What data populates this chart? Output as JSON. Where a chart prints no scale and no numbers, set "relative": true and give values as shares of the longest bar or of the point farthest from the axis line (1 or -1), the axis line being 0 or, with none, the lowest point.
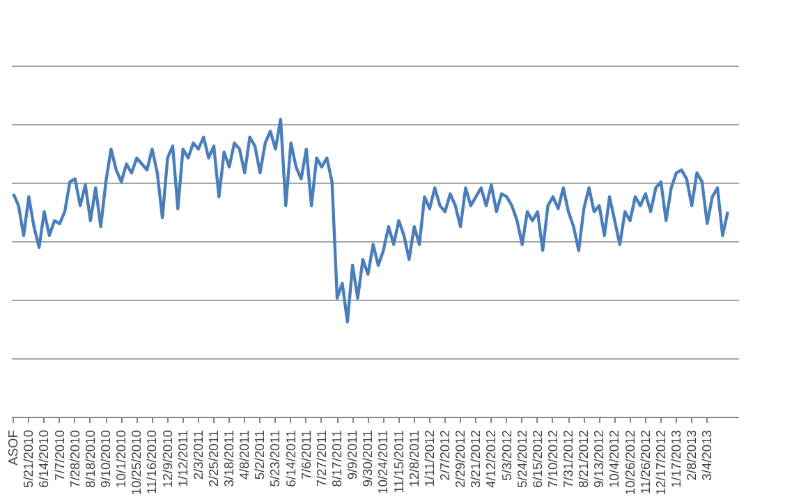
{
  "chart_data": {
    "type": "line",
    "relative": true,
    "grid": "y",
    "line_style": "solid",
    "marker": "none",
    "categories": [
      "ASOF",
      null,
      null,
      "5/21/2010",
      null,
      null,
      "6/14/2010",
      null,
      null,
      "7/7/2010",
      null,
      null,
      "7/28/2010",
      null,
      null,
      "8/18/2010",
      null,
      null,
      "9/10/2010",
      null,
      null,
      "10/1/2010",
      null,
      null,
      "10/25/2010",
      null,
      null,
      "11/16/2010",
      null,
      null,
      "12/9/2010",
      null,
      null,
      "1/12/2011",
      null,
      null,
      "2/3/2011",
      null,
      null,
      "2/25/2011",
      null,
      null,
      "3/18/2011",
      null,
      null,
      "4/8/2011",
      null,
      null,
      "5/2/2011",
      null,
      null,
      "5/23/2011",
      null,
      null,
      "6/14/2011",
      null,
      null,
      "7/6/2011",
      null,
      null,
      "7/27/2011",
      null,
      null,
      "8/17/2011",
      null,
      null,
      "9/9/2011",
      null,
      null,
      "9/30/2011",
      null,
      null,
      "10/24/2011",
      null,
      null,
      "11/15/2011",
      null,
      null,
      "12/8/2011",
      null,
      null,
      "1/11/2012",
      null,
      null,
      "2/7/2012",
      null,
      null,
      "2/29/2012",
      null,
      null,
      "3/21/2012",
      null,
      null,
      "4/12/2012",
      null,
      null,
      "5/3/2012",
      null,
      null,
      "5/24/2012",
      null,
      null,
      "6/15/2012",
      null,
      null,
      "7/10/2012",
      null,
      null,
      "7/31/2012",
      null,
      null,
      "8/21/2012",
      null,
      null,
      "9/13/2012",
      null,
      null,
      "10/4/2012",
      null,
      null,
      "10/26/2012",
      null,
      null,
      "11/26/2012",
      null,
      null,
      "12/17/2012",
      null,
      null,
      "1/17/2013",
      null,
      null,
      "2/8/2013",
      null,
      null,
      "3/4/2013",
      null,
      null,
      null,
      null,
      null
    ],
    "series": [
      {
        "color": "#4a7ebb",
        "values": [
          0.75,
          0.71,
          0.61,
          0.74,
          0.64,
          0.57,
          0.69,
          0.61,
          0.66,
          0.65,
          0.69,
          0.79,
          0.8,
          0.71,
          0.78,
          0.66,
          0.77,
          0.64,
          0.79,
          0.9,
          0.83,
          0.79,
          0.85,
          0.82,
          0.87,
          0.85,
          0.83,
          0.9,
          0.82,
          0.67,
          0.87,
          0.91,
          0.7,
          0.9,
          0.87,
          0.92,
          0.9,
          0.94,
          0.87,
          0.91,
          0.74,
          0.89,
          0.84,
          0.92,
          0.9,
          0.82,
          0.94,
          0.91,
          0.82,
          0.92,
          0.96,
          0.9,
          1.0,
          0.71,
          0.92,
          0.84,
          0.8,
          0.9,
          0.71,
          0.87,
          0.84,
          0.87,
          0.79,
          0.4,
          0.45,
          0.32,
          0.51,
          0.4,
          0.53,
          0.48,
          0.58,
          0.51,
          0.56,
          0.64,
          0.58,
          0.66,
          0.61,
          0.53,
          0.64,
          0.58,
          0.74,
          0.7,
          0.77,
          0.71,
          0.69,
          0.75,
          0.71,
          0.64,
          0.77,
          0.71,
          0.74,
          0.77,
          0.71,
          0.78,
          0.69,
          0.75,
          0.74,
          0.71,
          0.66,
          0.58,
          0.69,
          0.66,
          0.69,
          0.56,
          0.71,
          0.74,
          0.7,
          0.77,
          0.69,
          0.64,
          0.56,
          0.7,
          0.77,
          0.69,
          0.71,
          0.61,
          0.74,
          0.66,
          0.58,
          0.69,
          0.66,
          0.74,
          0.71,
          0.75,
          0.69,
          0.77,
          0.79,
          0.66,
          0.77,
          0.82,
          0.83,
          0.8,
          0.71,
          0.82,
          0.79,
          0.65,
          0.74,
          0.77,
          0.61,
          0.69,
          null
        ]
      }
    ]
  }
}
